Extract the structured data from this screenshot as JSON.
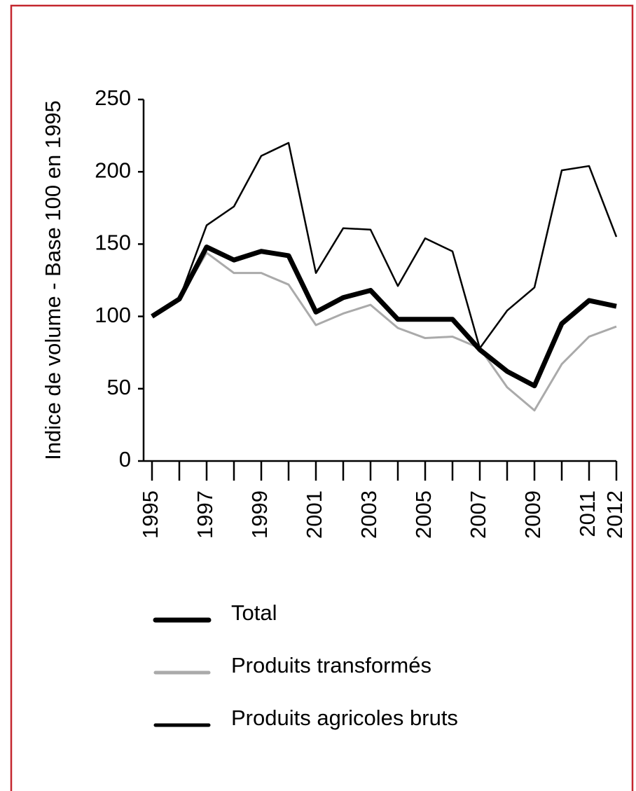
{
  "chart_data": {
    "type": "line",
    "y_label": "Indice de volume - Base 100 en 1995",
    "x": [
      1995,
      1996,
      1997,
      1998,
      1999,
      2000,
      2001,
      2002,
      2003,
      2004,
      2005,
      2006,
      2007,
      2008,
      2009,
      2010,
      2011,
      2012
    ],
    "series": [
      {
        "name": "Total",
        "color": "#000000",
        "width": 7,
        "values": [
          100,
          112,
          148,
          139,
          145,
          142,
          103,
          113,
          118,
          98,
          98,
          98,
          77,
          62,
          52,
          95,
          111,
          107
        ]
      },
      {
        "name": "Produits transformés",
        "color": "#aaaaaa",
        "width": 3,
        "values": [
          100,
          112,
          144,
          130,
          130,
          122,
          94,
          102,
          108,
          92,
          85,
          86,
          78,
          51,
          35,
          67,
          86,
          93
        ]
      },
      {
        "name": "Produits agricoles bruts",
        "color": "#000000",
        "width": 2.5,
        "values": [
          100,
          112,
          163,
          176,
          211,
          220,
          130,
          161,
          160,
          121,
          154,
          145,
          78,
          104,
          120,
          201,
          204,
          155
        ]
      }
    ],
    "xlim": [
      1995,
      2012
    ],
    "xticks": [
      1995,
      1997,
      1999,
      2001,
      2003,
      2005,
      2007,
      2009,
      2011,
      2012
    ],
    "ylim": [
      0,
      250
    ],
    "yticks": [
      0,
      50,
      100,
      150,
      200,
      250
    ],
    "grid": false
  }
}
